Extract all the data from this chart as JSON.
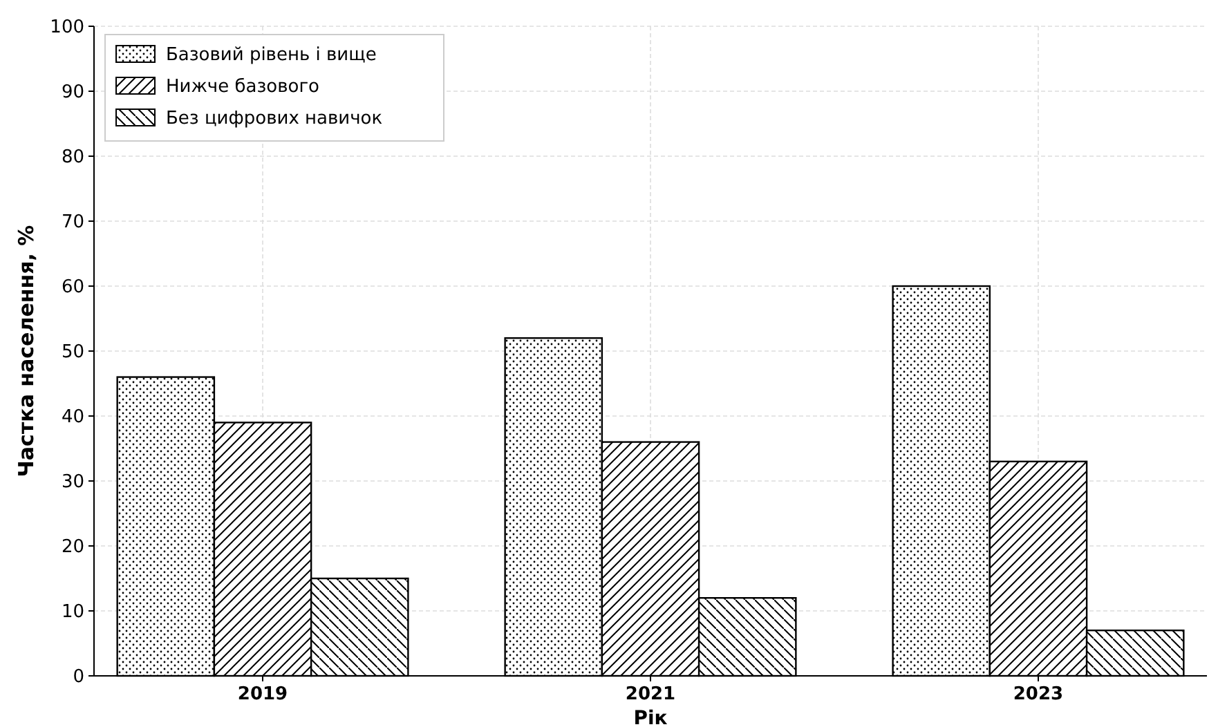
{
  "chart_data": {
    "type": "bar",
    "xlabel": "Рік",
    "ylabel": "Частка населення, %",
    "categories": [
      "2019",
      "2021",
      "2023"
    ],
    "series": [
      {
        "name": "Базовий рівень і вище",
        "color": "#000000",
        "values": [
          46,
          52,
          60
        ]
      },
      {
        "name": "Нижче базового",
        "color": "#000000",
        "values": [
          39,
          36,
          33
        ]
      },
      {
        "name": "Без цифрових навичок",
        "color": "#000000",
        "values": [
          15,
          12,
          7
        ]
      }
    ],
    "ylim": [
      0,
      100
    ],
    "yticks": [
      0,
      10,
      20,
      30,
      40,
      50,
      60,
      70,
      80,
      90,
      100
    ],
    "grid": true,
    "legend": "top left"
  }
}
